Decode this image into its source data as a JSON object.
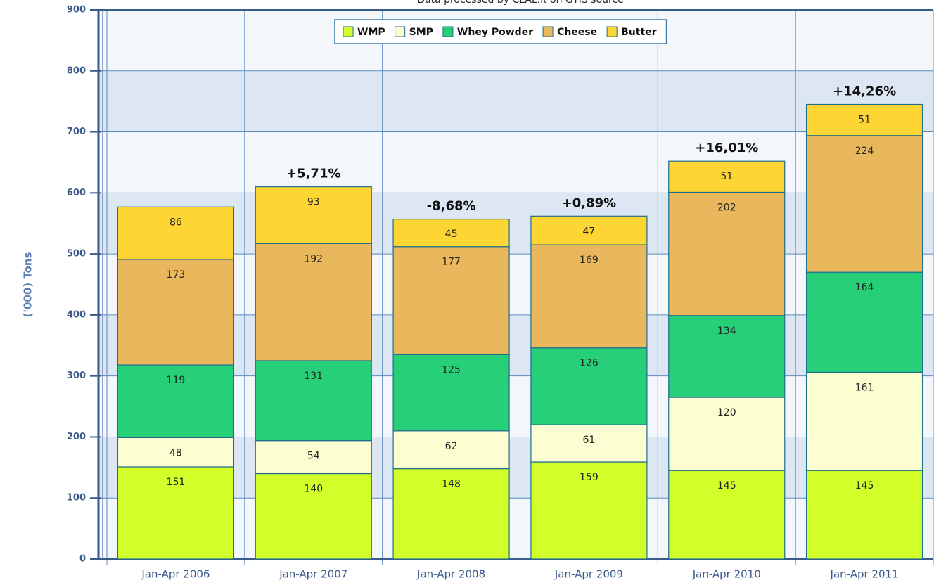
{
  "chart_data": {
    "type": "stacked_bar",
    "subtitle": "Data processed by CLAL.it on GTIS source",
    "y_label": "('000) Tons",
    "categories": [
      "Jan-Apr 2006",
      "Jan-Apr 2007",
      "Jan-Apr 2008",
      "Jan-Apr 2009",
      "Jan-Apr 2010",
      "Jan-Apr 2011"
    ],
    "series": [
      {
        "name": "WMP",
        "color": "#d2ff2a",
        "values": [
          151,
          140,
          148,
          159,
          145,
          145
        ]
      },
      {
        "name": "SMP",
        "color": "#fdfdd2",
        "values": [
          48,
          54,
          62,
          61,
          120,
          161
        ]
      },
      {
        "name": "Whey Powder",
        "color": "#26cf78",
        "values": [
          119,
          131,
          125,
          126,
          134,
          164
        ]
      },
      {
        "name": "Cheese",
        "color": "#e9b75c",
        "values": [
          173,
          192,
          177,
          169,
          202,
          224
        ]
      },
      {
        "name": "Butter",
        "color": "#fdd634",
        "values": [
          86,
          93,
          45,
          47,
          51,
          51
        ]
      }
    ],
    "change_labels": [
      null,
      "+5,71%",
      "-8,68%",
      "+0,89%",
      "+16,01%",
      "+14,26%"
    ],
    "ylim": [
      0,
      900
    ],
    "yticks": [
      0,
      100,
      200,
      300,
      400,
      500,
      600,
      700,
      800,
      900
    ],
    "grid": true,
    "legend": "top"
  }
}
